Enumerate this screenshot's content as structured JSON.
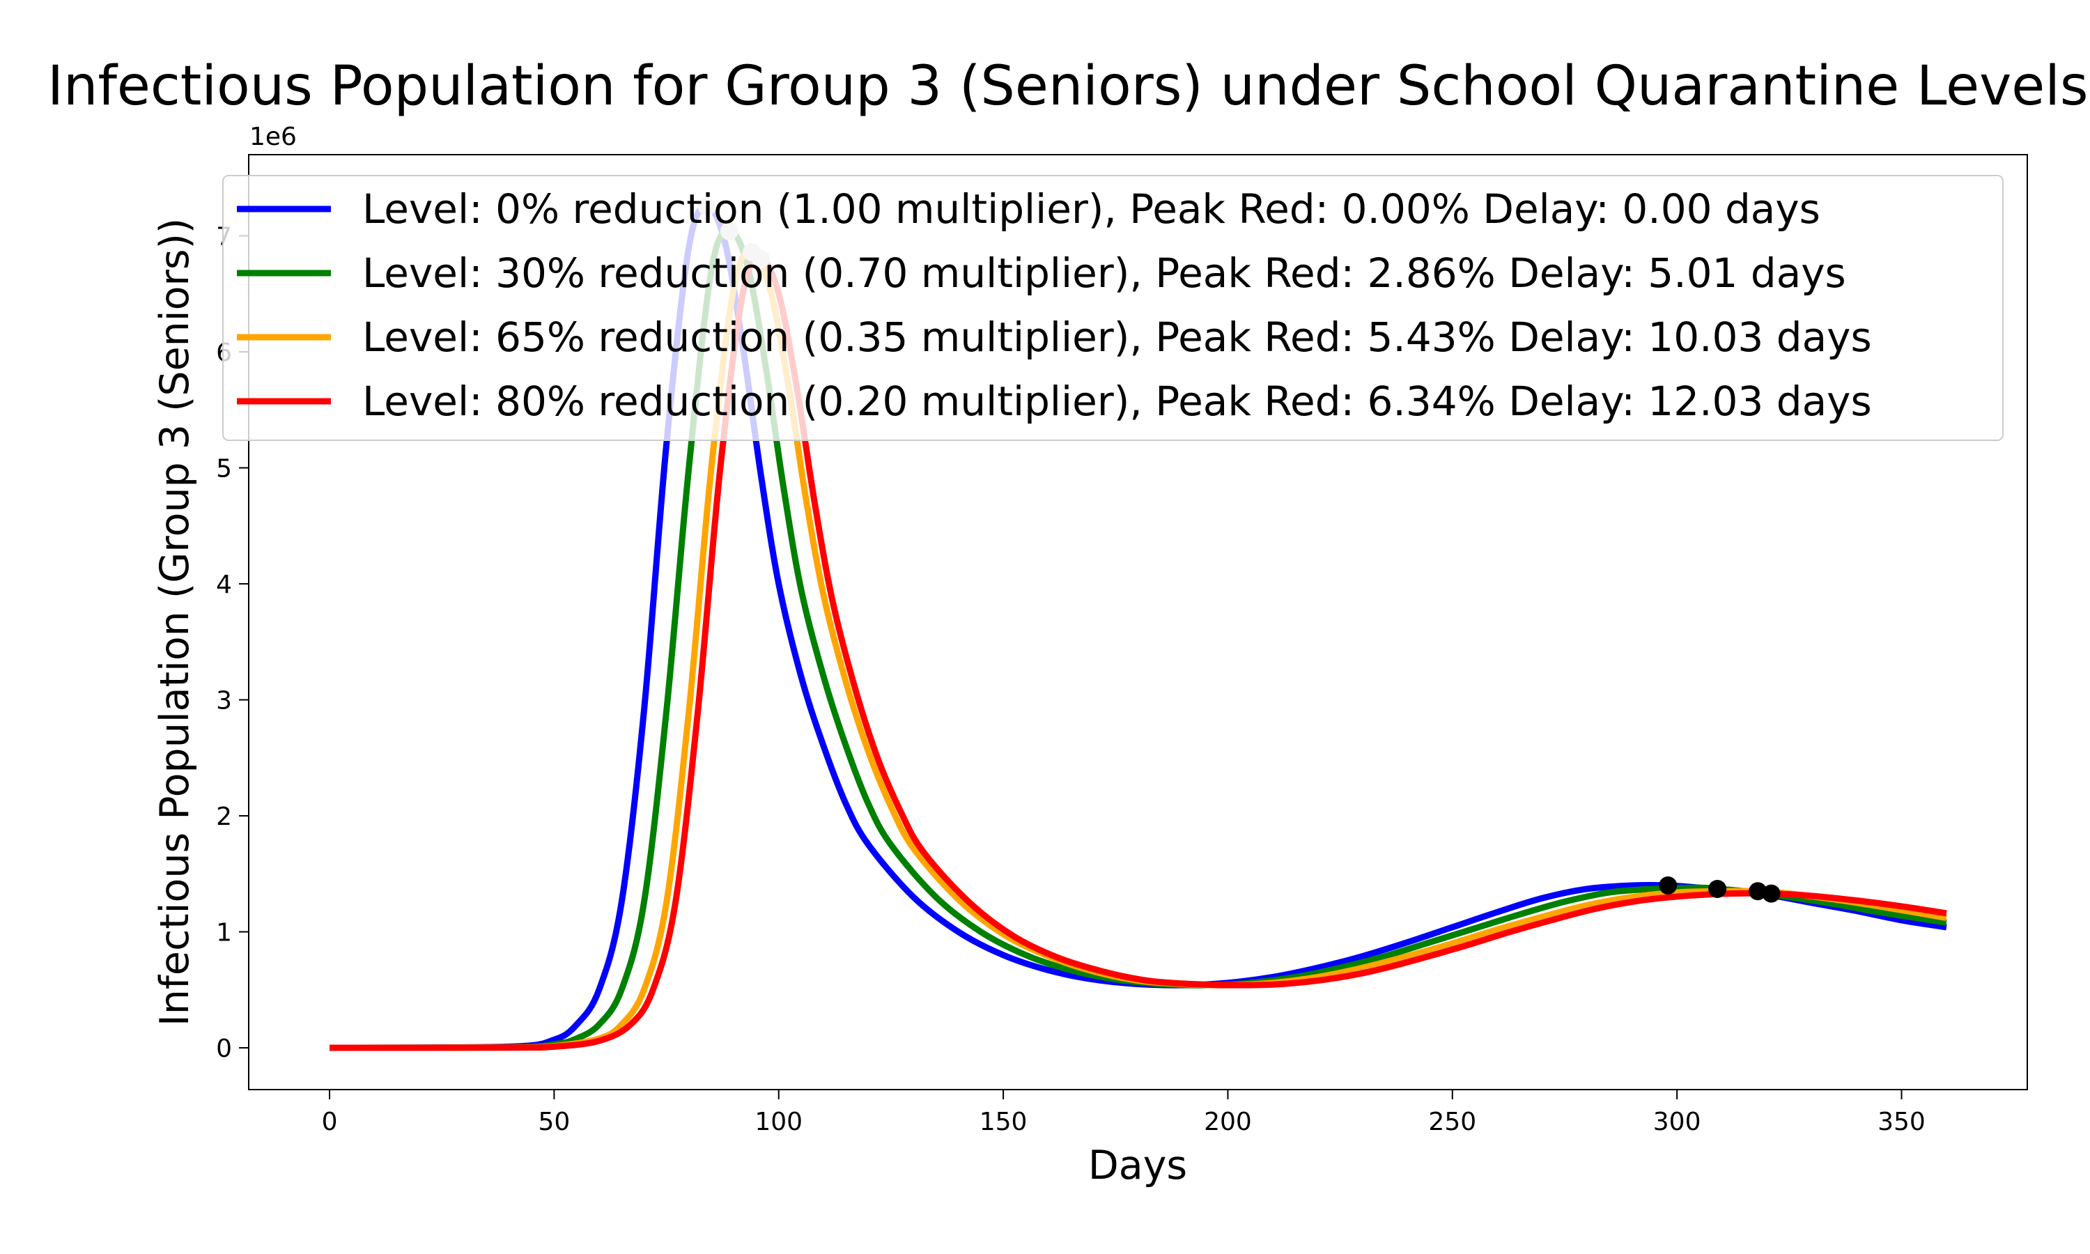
{
  "chart_data": {
    "type": "line",
    "title": "Infectious Population for Group 3 (Seniors) under School Quarantine Levels",
    "xlabel": "Days",
    "ylabel": "Infectious Population (Group 3 (Seniors))",
    "y_offset_label": "1e6",
    "xlim": [
      -18,
      378
    ],
    "ylim": [
      -0.36,
      7.7
    ],
    "y_units_multiplier": 1000000,
    "xticks": [
      0,
      50,
      100,
      150,
      200,
      250,
      300,
      350
    ],
    "yticks": [
      0,
      1,
      2,
      3,
      4,
      5,
      6,
      7
    ],
    "xtick_labels": [
      "0",
      "50",
      "100",
      "150",
      "200",
      "250",
      "300",
      "350"
    ],
    "ytick_labels": [
      "0",
      "1",
      "2",
      "3",
      "4",
      "5",
      "6",
      "7"
    ],
    "grid": false,
    "legend_position": "top",
    "series": [
      {
        "name": "Level: 0% reduction (1.00 multiplier), Peak Red: 0.00% Delay: 0.00 days",
        "color": "#0000ff",
        "x": [
          0,
          40,
          50,
          55,
          60,
          65,
          70,
          75,
          80,
          84,
          88,
          92,
          96,
          100,
          105,
          110,
          115,
          120,
          130,
          140,
          150,
          160,
          170,
          180,
          190,
          200,
          210,
          220,
          230,
          240,
          250,
          260,
          270,
          280,
          290,
          298,
          305,
          310,
          320,
          330,
          340,
          350,
          360
        ],
        "y": [
          0,
          0.01,
          0.07,
          0.2,
          0.5,
          1.25,
          2.9,
          5.2,
          6.9,
          7.25,
          6.95,
          6.05,
          4.95,
          4.0,
          3.2,
          2.6,
          2.1,
          1.75,
          1.3,
          1.0,
          0.8,
          0.67,
          0.59,
          0.55,
          0.54,
          0.56,
          0.61,
          0.69,
          0.79,
          0.91,
          1.04,
          1.17,
          1.29,
          1.37,
          1.4,
          1.4,
          1.38,
          1.36,
          1.32,
          1.25,
          1.18,
          1.1,
          1.04
        ]
      },
      {
        "name": "Level: 30% reduction (0.70 multiplier), Peak Red: 2.86% Delay: 5.01 days",
        "color": "#008000",
        "x": [
          0,
          40,
          50,
          55,
          60,
          65,
          70,
          75,
          80,
          85,
          89,
          93,
          97,
          101,
          105,
          110,
          115,
          120,
          125,
          135,
          145,
          155,
          165,
          175,
          185,
          195,
          205,
          215,
          225,
          235,
          245,
          255,
          265,
          275,
          285,
          295,
          305,
          309,
          315,
          325,
          335,
          345,
          360
        ],
        "y": [
          0,
          0.005,
          0.03,
          0.08,
          0.2,
          0.5,
          1.25,
          2.9,
          5.0,
          6.7,
          7.04,
          6.75,
          5.9,
          4.85,
          3.95,
          3.2,
          2.6,
          2.1,
          1.75,
          1.3,
          1.0,
          0.8,
          0.67,
          0.59,
          0.55,
          0.54,
          0.56,
          0.61,
          0.69,
          0.79,
          0.91,
          1.03,
          1.15,
          1.26,
          1.34,
          1.37,
          1.38,
          1.37,
          1.35,
          1.3,
          1.24,
          1.17,
          1.08
        ]
      },
      {
        "name": "Level: 65% reduction (0.35 multiplier), Peak Red: 5.43% Delay: 10.03 days",
        "color": "#ffa500",
        "x": [
          0,
          40,
          50,
          60,
          65,
          70,
          75,
          80,
          85,
          90,
          94,
          98,
          102,
          106,
          110,
          115,
          120,
          125,
          130,
          140,
          150,
          160,
          170,
          180,
          190,
          200,
          210,
          220,
          230,
          240,
          250,
          260,
          270,
          280,
          290,
          300,
          310,
          318,
          325,
          335,
          345,
          360
        ],
        "y": [
          0,
          0.003,
          0.015,
          0.08,
          0.2,
          0.5,
          1.25,
          2.9,
          5.0,
          6.55,
          6.86,
          6.55,
          5.75,
          4.75,
          3.9,
          3.15,
          2.55,
          2.08,
          1.72,
          1.28,
          0.98,
          0.79,
          0.66,
          0.58,
          0.55,
          0.54,
          0.56,
          0.61,
          0.69,
          0.79,
          0.9,
          1.02,
          1.13,
          1.23,
          1.3,
          1.34,
          1.35,
          1.35,
          1.33,
          1.28,
          1.22,
          1.12
        ]
      },
      {
        "name": "Level: 80% reduction (0.20 multiplier), Peak Red: 6.34% Delay: 12.03 days",
        "color": "#ff0000",
        "x": [
          0,
          40,
          50,
          60,
          67,
          72,
          77,
          82,
          87,
          92,
          96,
          100,
          104,
          108,
          112,
          117,
          122,
          127,
          132,
          142,
          152,
          162,
          172,
          182,
          192,
          202,
          212,
          222,
          232,
          242,
          252,
          262,
          272,
          282,
          292,
          302,
          312,
          321,
          330,
          340,
          350,
          360
        ],
        "y": [
          0,
          0.002,
          0.01,
          0.06,
          0.2,
          0.5,
          1.25,
          2.9,
          5.0,
          6.5,
          6.8,
          6.5,
          5.7,
          4.7,
          3.85,
          3.1,
          2.5,
          2.05,
          1.7,
          1.27,
          0.97,
          0.78,
          0.66,
          0.58,
          0.55,
          0.54,
          0.55,
          0.59,
          0.66,
          0.76,
          0.87,
          0.99,
          1.1,
          1.2,
          1.27,
          1.31,
          1.33,
          1.33,
          1.31,
          1.27,
          1.22,
          1.16
        ]
      }
    ],
    "peak_markers": [
      {
        "series": 0,
        "x": 84,
        "y": 7.25,
        "color": "#d3d3d3"
      },
      {
        "series": 1,
        "x": 89,
        "y": 7.04,
        "color": "#d3d3d3"
      },
      {
        "series": 2,
        "x": 94,
        "y": 6.86,
        "color": "#d3d3d3"
      },
      {
        "series": 3,
        "x": 96,
        "y": 6.8,
        "color": "#d3d3d3"
      },
      {
        "series": 0,
        "x": 298,
        "y": 1.4,
        "color": "#000000"
      },
      {
        "series": 1,
        "x": 309,
        "y": 1.37,
        "color": "#000000"
      },
      {
        "series": 2,
        "x": 318,
        "y": 1.35,
        "color": "#000000"
      },
      {
        "series": 3,
        "x": 321,
        "y": 1.33,
        "color": "#000000"
      }
    ]
  }
}
